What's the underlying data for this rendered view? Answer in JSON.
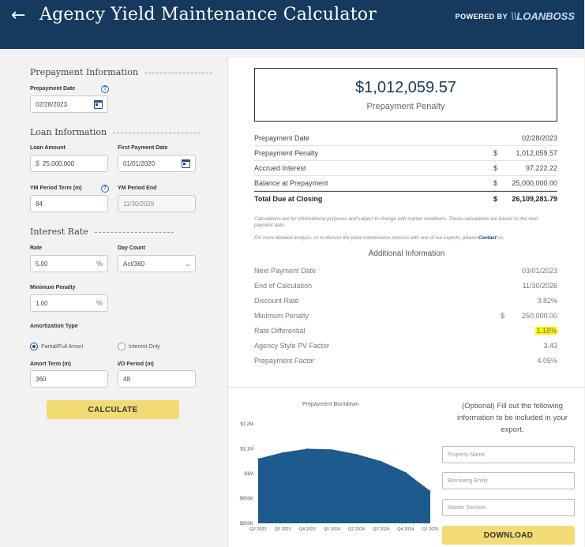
{
  "header": {
    "title": "Agency Yield Maintenance Calculator",
    "powered_by": "POWERED BY",
    "brand_mark": "\\\\",
    "brand": "LOANBOSS"
  },
  "form": {
    "prepayment_section": "Prepayment Information",
    "prepayment_date_label": "Prepayment Date",
    "prepayment_date": "02/28/2023",
    "loan_section": "Loan Information",
    "loan_amount_label": "Loan Amount",
    "loan_amount_prefix": "$",
    "loan_amount": "25,000,000",
    "first_payment_label": "First Payment Date",
    "first_payment_date": "01/01/2020",
    "ym_term_label": "YM Period Term (m)",
    "ym_term": "84",
    "ym_end_label": "YM Period End",
    "ym_end": "11/30/2026",
    "rate_section": "Interest Rate",
    "rate_label": "Rate",
    "rate": "5.00",
    "percent_suffix": "%",
    "day_count_label": "Day Count",
    "day_count": "Act/360",
    "min_penalty_label": "Minimum Penalty",
    "min_penalty": "1.00",
    "amort_type_label": "Amortization Type",
    "amort_option_1": "Partial/Full Amort",
    "amort_option_2": "Interest Only",
    "amort_term_label": "Amort Term (m)",
    "amort_term": "360",
    "io_period_label": "I/O Period (m)",
    "io_period": "48",
    "calculate": "CALCULATE"
  },
  "result": {
    "penalty_amount": "$1,012,059.57",
    "penalty_label": "Prepayment Penalty",
    "summary": [
      {
        "label": "Prepayment Date",
        "currency": "",
        "amount": "02/28/2023"
      },
      {
        "label": "Prepayment Penalty",
        "currency": "$",
        "amount": "1,012,059.57"
      },
      {
        "label": "Accrued Interest",
        "currency": "$",
        "amount": "97,222.22"
      },
      {
        "label": "Balance at Prepayment",
        "currency": "$",
        "amount": "25,000,000.00"
      }
    ],
    "total": {
      "label": "Total Due at Closing",
      "currency": "$",
      "amount": "26,109,281.79"
    },
    "note_1": "Calculations are for informational purposes and subject to change with market conditions. These calculations are based on the next payment date.",
    "note_2_pre": "For more detailed analysis, or to discuss the yield maintenance process with one of our experts, please",
    "note_2_link": "Contact",
    "note_2_post": "us.",
    "additional_title": "Additional Information",
    "additional": [
      {
        "label": "Next Payment Date",
        "currency": "",
        "amount": "03/01/2023"
      },
      {
        "label": "End of Calculation",
        "currency": "",
        "amount": "11/30/2026"
      },
      {
        "label": "Discount Rate",
        "currency": "",
        "amount": "3.82%"
      },
      {
        "label": "Minimum Penalty",
        "currency": "$",
        "amount": "250,000.00"
      },
      {
        "label": "Rate Differential",
        "currency": "",
        "amount": "1.18%"
      },
      {
        "label": "Agency Style PV Factor",
        "currency": "",
        "amount": "3.43"
      },
      {
        "label": "Prepayment Factor",
        "currency": "",
        "amount": "4.05%"
      }
    ]
  },
  "chart_data": {
    "type": "area",
    "title": "Prepayment Burndown",
    "categories": [
      "Q2 2023",
      "Q3 2023",
      "Q4 2023",
      "Q1 2024",
      "Q2 2024",
      "Q3 2024",
      "Q4 2024",
      "Q1 2025"
    ],
    "values": [
      1060000,
      1085000,
      1100000,
      1097000,
      1078000,
      1050000,
      1005000,
      930000
    ],
    "ylim": [
      800000,
      1200000
    ],
    "y_ticks": [
      {
        "value": 1200000,
        "label": "$1.2M"
      },
      {
        "value": 1100000,
        "label": "$1.1M"
      },
      {
        "value": 1000000,
        "label": "$1M"
      },
      {
        "value": 900000,
        "label": "$900K"
      },
      {
        "value": 800000,
        "label": "$800K"
      }
    ],
    "color": "#1d5a8e"
  },
  "export": {
    "text": "(Optional) Fill out the following information to be included in your export.",
    "property_placeholder": "Property Name",
    "entity_placeholder": "Borrowing Entity",
    "servicer_placeholder": "Master Servicer",
    "download": "DOWNLOAD"
  },
  "colors": {
    "header_bg": "#163a5e",
    "button_gold": "#f3db74",
    "highlight": "#fff200"
  }
}
